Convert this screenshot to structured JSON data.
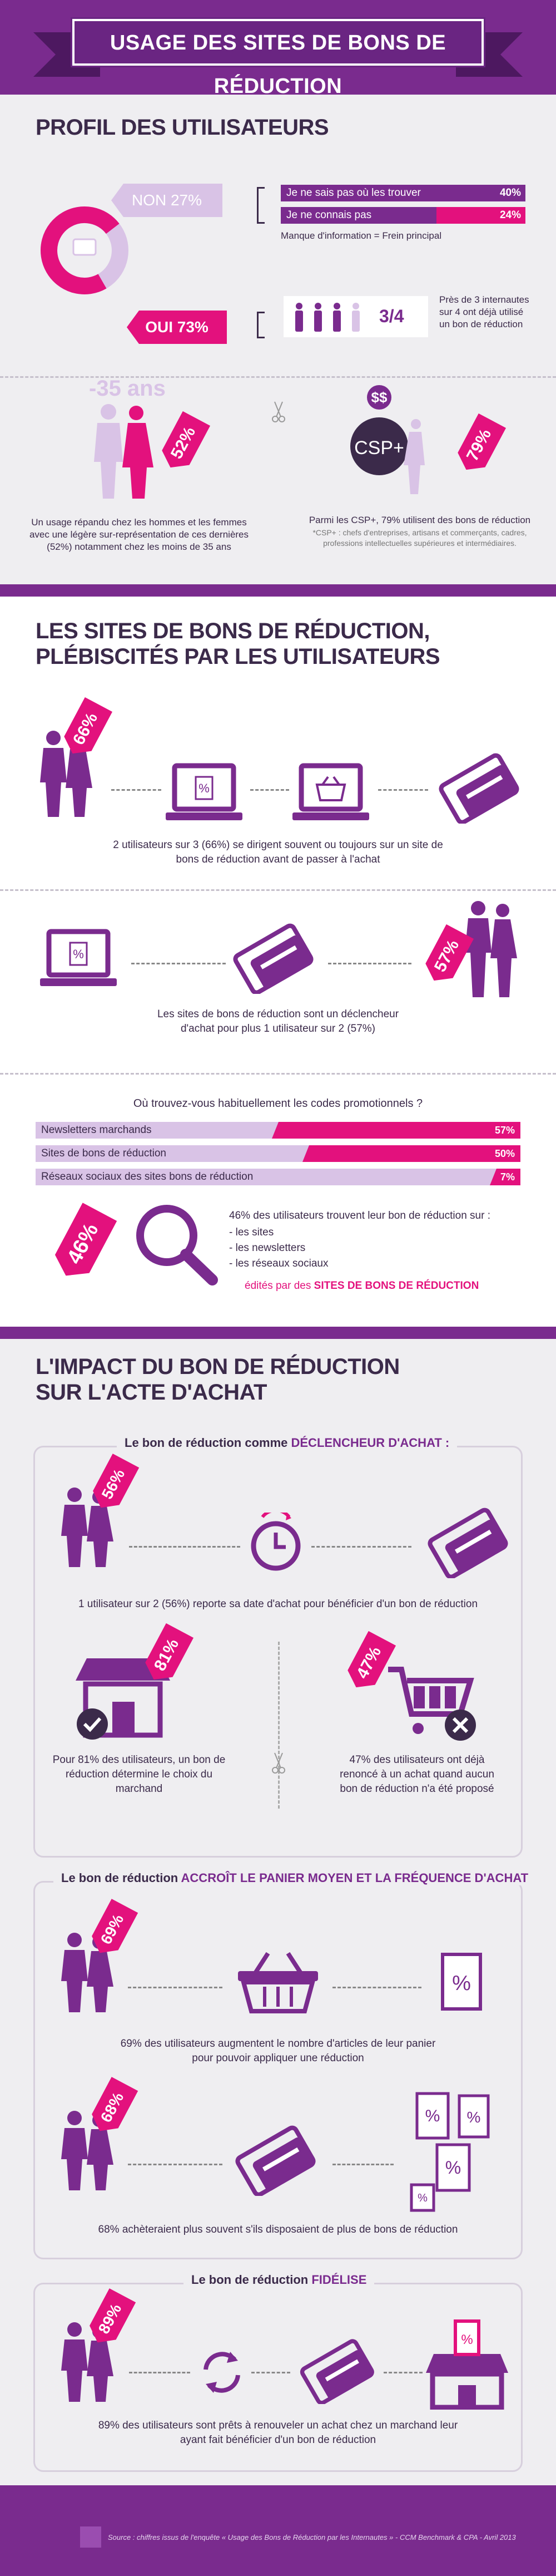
{
  "header": {
    "title": "USAGE DES SITES DE BONS DE RÉDUCTION"
  },
  "profil": {
    "title": "PROFIL DES UTILISATEURS",
    "non_label": "NON 27%",
    "oui_label": "OUI 73%",
    "reasons": [
      {
        "label": "Je ne sais pas où les trouver",
        "value": "40%",
        "fraction": 0.4
      },
      {
        "label": "Je ne connais pas",
        "value": "24%",
        "fraction": 0.24
      }
    ],
    "reasons_note": "Manque d'information = Frein principal",
    "ratio": "3/4",
    "ratio_text": "Près de 3 internautes sur 4 ont déjà utilisé un bon de réduction",
    "age_label": "-35 ans",
    "women_pct": "52%",
    "women_text": "Un usage répandu chez les hommes et les femmes avec une légère sur-représentation de ces dernières (52%) notamment chez les moins de 35 ans",
    "csp_label": "CSP+",
    "csp_pct": "79%",
    "csp_text": "Parmi les CSP+, 79% utilisent des bons de réduction",
    "csp_note": "*CSP+ : chefs d'entreprises, artisans et commerçants, cadres, professions intellectuelles supérieures et intermédiaires."
  },
  "sites": {
    "title_line1": "LES SITES DE BONS DE RÉDUCTION,",
    "title_line2": "PLÉBISCITÉS PAR LES UTILISATEURS",
    "pct1": "66%",
    "text1": "2 utilisateurs sur 3 (66%) se dirigent souvent ou toujours sur un site de bons de réduction avant de passer à l'achat",
    "pct2": "57%",
    "text2": "Les sites de bons de réduction sont un déclencheur d'achat pour plus 1 utilisateur sur 2 (57%)",
    "question": "Où trouvez-vous habituellement les codes promotionnels ?",
    "channels": [
      {
        "label": "Newsletters marchands",
        "value": "57%",
        "fraction": 0.57
      },
      {
        "label": "Sites de bons de réduction",
        "value": "50%",
        "fraction": 0.5
      },
      {
        "label": "Réseaux sociaux des sites bons de réduction",
        "value": "7%",
        "fraction": 0.07
      }
    ],
    "pct3": "46%",
    "text3_intro": "46% des utilisateurs trouvent leur bon de réduction sur :",
    "text3_items": [
      "- les sites",
      "- les newsletters",
      "- les réseaux sociaux"
    ],
    "text3_end_a": "édités par des",
    "text3_end_b": "SITES DE BONS DE RÉDUCTION"
  },
  "impact": {
    "title_line1": "L'IMPACT DU BON DE RÉDUCTION",
    "title_line2": "SUR L'ACTE D'ACHAT",
    "box1_a": "Le bon de réduction comme",
    "box1_b": "DÉCLENCHEUR D'ACHAT :",
    "pct56": "56%",
    "text56": "1 utilisateur sur 2 (56%) reporte sa date d'achat pour bénéficier d'un bon de réduction",
    "pct81": "81%",
    "text81": "Pour 81% des utilisateurs, un bon de réduction détermine le choix du marchand",
    "pct47": "47%",
    "text47": "47% des utilisateurs ont déjà renoncé à un achat quand aucun bon de réduction n'a été proposé",
    "box2_a": "Le bon de réduction",
    "box2_b": "ACCROÎT LE PANIER MOYEN ET LA FRÉQUENCE D'ACHAT",
    "pct69": "69%",
    "text69": "69% des utilisateurs augmentent le nombre d'articles de leur panier pour pouvoir appliquer une réduction",
    "pct68": "68%",
    "text68": "68% achèteraient plus souvent s'ils disposaient de plus de bons de réduction",
    "box3_a": "Le bon de réduction",
    "box3_b": "FIDÉLISE",
    "pct89": "89%",
    "text89": "89% des utilisateurs sont prêts à renouveler un achat chez un marchand leur ayant fait bénéficier d'un bon de réduction"
  },
  "footer": {
    "source": "Source : chiffres issus de l'enquête « Usage des Bons de Réduction par les Internautes » - CCM Benchmark & CPA - Avril 2013"
  },
  "colors": {
    "purple": "#7a2b8e",
    "pink": "#e3117d",
    "lilac": "#d9c3e6",
    "gray": "#efeef1"
  },
  "icons": [
    "shopping-people-icon",
    "laptop-percent-icon",
    "basket-icon",
    "credit-card-icon",
    "clock-icon",
    "shop-check-icon",
    "cart-cross-icon",
    "recycle-icon",
    "scissors-icon"
  ]
}
